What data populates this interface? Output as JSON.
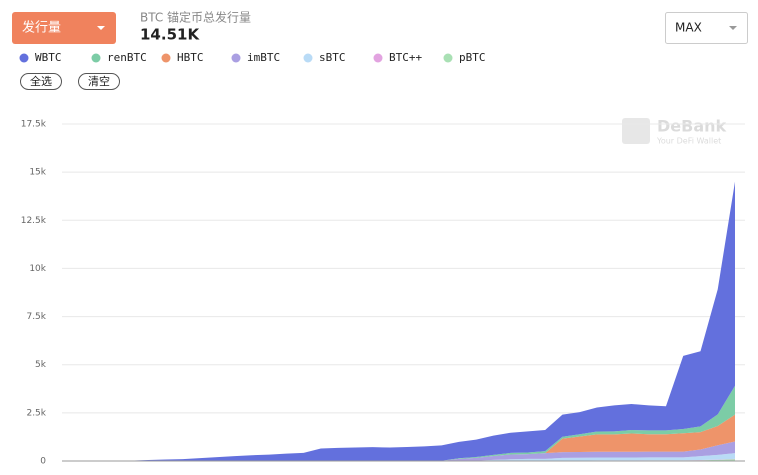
{
  "header": {
    "dropdown": "发行量",
    "caption": "BTC 锚定币总发行量",
    "total": "14.51K",
    "range": "MAX",
    "select_all": "全选",
    "clear": "清空"
  },
  "watermark": {
    "brand": "DeBank",
    "tagline": "Your DeFi Wallet"
  },
  "chart_data": {
    "type": "stacked_area",
    "categories": [
      null,
      null,
      null,
      null,
      null,
      null,
      null,
      null,
      null,
      null,
      null,
      null,
      null,
      null,
      null,
      null,
      null,
      null,
      null,
      null,
      null,
      null,
      null,
      null,
      null,
      null,
      null,
      null,
      null,
      null,
      null,
      null,
      null,
      null,
      null,
      null,
      null,
      null,
      null,
      null
    ],
    "series": [
      {
        "name": "WBTC",
        "color": "#6370dd",
        "values": [
          0,
          0,
          0,
          0,
          20,
          50,
          80,
          100,
          150,
          200,
          250,
          300,
          330,
          380,
          420,
          650,
          680,
          700,
          720,
          700,
          720,
          750,
          800,
          850,
          900,
          1000,
          1050,
          1100,
          1100,
          1150,
          1150,
          1250,
          1350,
          1350,
          1300,
          1250,
          3800,
          3900,
          6500,
          10600
        ]
      },
      {
        "name": "renBTC",
        "color": "#7ccca6",
        "values": [
          0,
          0,
          0,
          0,
          0,
          0,
          0,
          0,
          0,
          0,
          0,
          0,
          0,
          0,
          0,
          0,
          0,
          0,
          0,
          0,
          0,
          0,
          0,
          30,
          50,
          60,
          80,
          80,
          100,
          100,
          120,
          150,
          160,
          180,
          200,
          200,
          220,
          300,
          600,
          1500
        ]
      },
      {
        "name": "HBTC",
        "color": "#ee946a",
        "values": [
          0,
          0,
          0,
          0,
          0,
          0,
          0,
          0,
          0,
          0,
          0,
          0,
          0,
          0,
          0,
          0,
          0,
          0,
          0,
          0,
          0,
          0,
          0,
          0,
          0,
          0,
          0,
          0,
          0,
          700,
          800,
          900,
          900,
          950,
          900,
          900,
          950,
          900,
          1000,
          1400
        ]
      },
      {
        "name": "imBTC",
        "color": "#aa9fe2",
        "values": [
          0,
          0,
          0,
          0,
          0,
          0,
          0,
          0,
          0,
          0,
          0,
          0,
          0,
          0,
          0,
          0,
          0,
          0,
          0,
          0,
          0,
          0,
          0,
          100,
          150,
          200,
          250,
          250,
          300,
          300,
          300,
          300,
          300,
          300,
          300,
          300,
          300,
          350,
          500,
          600
        ]
      },
      {
        "name": "sBTC",
        "color": "#b9dbf6",
        "values": [
          0,
          0,
          0,
          0,
          0,
          0,
          0,
          0,
          0,
          0,
          0,
          0,
          0,
          0,
          0,
          0,
          0,
          0,
          0,
          0,
          0,
          0,
          0,
          0,
          0,
          50,
          80,
          100,
          100,
          150,
          150,
          150,
          150,
          150,
          150,
          150,
          150,
          200,
          250,
          300
        ]
      },
      {
        "name": "BTC++",
        "color": "#e2a3e0",
        "values": [
          0,
          0,
          0,
          0,
          0,
          0,
          0,
          0,
          0,
          0,
          0,
          0,
          0,
          0,
          0,
          0,
          0,
          0,
          0,
          0,
          10,
          10,
          10,
          10,
          10,
          10,
          10,
          10,
          10,
          10,
          10,
          10,
          10,
          10,
          10,
          10,
          10,
          10,
          10,
          10
        ]
      },
      {
        "name": "pBTC",
        "color": "#a9e0b4",
        "values": [
          0,
          0,
          0,
          0,
          0,
          0,
          0,
          0,
          0,
          0,
          0,
          0,
          0,
          0,
          0,
          0,
          0,
          0,
          0,
          0,
          0,
          0,
          0,
          0,
          0,
          0,
          0,
          0,
          0,
          0,
          10,
          20,
          20,
          20,
          30,
          30,
          30,
          40,
          60,
          100
        ]
      }
    ],
    "ylim": [
      0,
      17500
    ],
    "yticks": [
      0,
      {
        "value": 2500,
        "label": "2.5k"
      },
      {
        "value": 5000,
        "label": "5k"
      },
      {
        "value": 7500,
        "label": "7.5k"
      },
      {
        "value": 10000,
        "label": "10k"
      },
      {
        "value": 12500,
        "label": "12.5k"
      },
      {
        "value": 15000,
        "label": "15k"
      },
      {
        "value": 17500,
        "label": "17.5k"
      }
    ],
    "grid": true
  }
}
